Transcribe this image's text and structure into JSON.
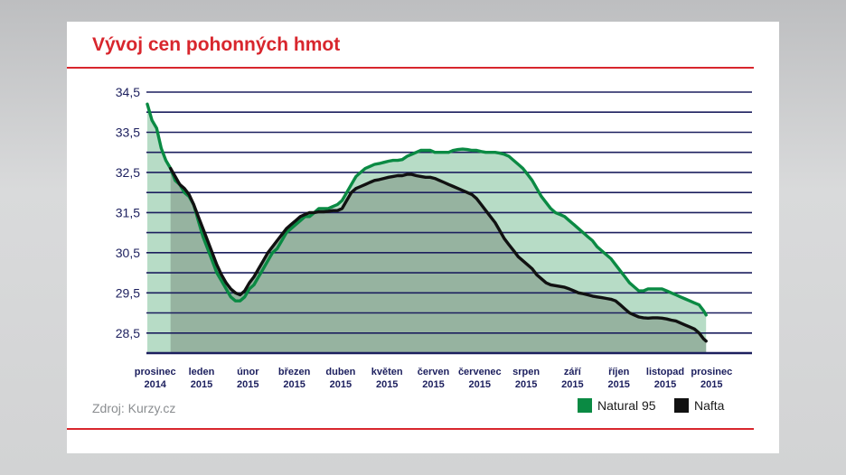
{
  "header": {
    "title": "Vývoj cen pohonných hmot"
  },
  "footer": {
    "source": "Zdroj: Kurzy.cz"
  },
  "colors": {
    "accent": "#d8262d",
    "grid": "#1c1f5e",
    "natural_line": "#0a8a43",
    "natural_fill": "#b7dcc6",
    "nafta_line": "#111111",
    "nafta_fill": "#96b3a0"
  },
  "chart_data": {
    "type": "area",
    "ylim": [
      28.0,
      34.5
    ],
    "yticks": [
      34.5,
      33.5,
      32.5,
      31.5,
      30.5,
      29.5,
      28.5
    ],
    "ytick_labels": [
      "34,5",
      "33,5",
      "32,5",
      "31,5",
      "30,5",
      "29,5",
      "28,5"
    ],
    "months": [
      {
        "m": "prosinec",
        "y": "2014"
      },
      {
        "m": "leden",
        "y": "2015"
      },
      {
        "m": "únor",
        "y": "2015"
      },
      {
        "m": "březen",
        "y": "2015"
      },
      {
        "m": "duben",
        "y": "2015"
      },
      {
        "m": "květen",
        "y": "2015"
      },
      {
        "m": "červen",
        "y": "2015"
      },
      {
        "m": "červenec",
        "y": "2015"
      },
      {
        "m": "srpen",
        "y": "2015"
      },
      {
        "m": "září",
        "y": "2015"
      },
      {
        "m": "říjen",
        "y": "2015"
      },
      {
        "m": "listopad",
        "y": "2015"
      },
      {
        "m": "prosinec",
        "y": "2015"
      }
    ],
    "xlim": [
      0,
      13
    ],
    "series": [
      {
        "name": "Natural 95",
        "points": [
          [
            0.0,
            34.2
          ],
          [
            0.1,
            33.8
          ],
          [
            0.2,
            33.6
          ],
          [
            0.3,
            33.1
          ],
          [
            0.4,
            32.8
          ],
          [
            0.5,
            32.6
          ],
          [
            0.6,
            32.3
          ],
          [
            0.7,
            32.2
          ],
          [
            0.8,
            32.0
          ],
          [
            0.9,
            31.9
          ],
          [
            1.0,
            31.7
          ],
          [
            1.1,
            31.3
          ],
          [
            1.2,
            30.9
          ],
          [
            1.3,
            30.6
          ],
          [
            1.4,
            30.3
          ],
          [
            1.5,
            30.0
          ],
          [
            1.6,
            29.8
          ],
          [
            1.7,
            29.6
          ],
          [
            1.8,
            29.4
          ],
          [
            1.9,
            29.3
          ],
          [
            2.0,
            29.3
          ],
          [
            2.1,
            29.4
          ],
          [
            2.2,
            29.6
          ],
          [
            2.3,
            29.7
          ],
          [
            2.4,
            29.9
          ],
          [
            2.5,
            30.1
          ],
          [
            2.6,
            30.3
          ],
          [
            2.7,
            30.5
          ],
          [
            2.8,
            30.6
          ],
          [
            2.9,
            30.8
          ],
          [
            3.0,
            31.0
          ],
          [
            3.1,
            31.1
          ],
          [
            3.2,
            31.2
          ],
          [
            3.3,
            31.3
          ],
          [
            3.4,
            31.4
          ],
          [
            3.5,
            31.4
          ],
          [
            3.6,
            31.5
          ],
          [
            3.7,
            31.6
          ],
          [
            3.8,
            31.6
          ],
          [
            3.9,
            31.6
          ],
          [
            4.0,
            31.65
          ],
          [
            4.1,
            31.7
          ],
          [
            4.2,
            31.8
          ],
          [
            4.3,
            32.0
          ],
          [
            4.4,
            32.2
          ],
          [
            4.5,
            32.4
          ],
          [
            4.6,
            32.5
          ],
          [
            4.7,
            32.6
          ],
          [
            4.8,
            32.65
          ],
          [
            4.9,
            32.7
          ],
          [
            5.0,
            32.72
          ],
          [
            5.1,
            32.75
          ],
          [
            5.2,
            32.78
          ],
          [
            5.3,
            32.8
          ],
          [
            5.4,
            32.8
          ],
          [
            5.5,
            32.82
          ],
          [
            5.6,
            32.9
          ],
          [
            5.7,
            32.95
          ],
          [
            5.8,
            33.0
          ],
          [
            5.9,
            33.05
          ],
          [
            6.0,
            33.05
          ],
          [
            6.1,
            33.05
          ],
          [
            6.2,
            33.0
          ],
          [
            6.3,
            33.0
          ],
          [
            6.4,
            33.0
          ],
          [
            6.5,
            33.0
          ],
          [
            6.6,
            33.05
          ],
          [
            6.7,
            33.07
          ],
          [
            6.8,
            33.08
          ],
          [
            6.9,
            33.07
          ],
          [
            7.0,
            33.05
          ],
          [
            7.1,
            33.05
          ],
          [
            7.2,
            33.02
          ],
          [
            7.3,
            33.0
          ],
          [
            7.4,
            33.0
          ],
          [
            7.5,
            33.0
          ],
          [
            7.6,
            32.98
          ],
          [
            7.7,
            32.95
          ],
          [
            7.8,
            32.9
          ],
          [
            7.9,
            32.8
          ],
          [
            8.0,
            32.7
          ],
          [
            8.1,
            32.6
          ],
          [
            8.2,
            32.45
          ],
          [
            8.3,
            32.3
          ],
          [
            8.4,
            32.1
          ],
          [
            8.5,
            31.9
          ],
          [
            8.6,
            31.75
          ],
          [
            8.7,
            31.6
          ],
          [
            8.8,
            31.5
          ],
          [
            8.9,
            31.45
          ],
          [
            9.0,
            31.4
          ],
          [
            9.1,
            31.3
          ],
          [
            9.2,
            31.2
          ],
          [
            9.3,
            31.1
          ],
          [
            9.4,
            31.0
          ],
          [
            9.5,
            30.9
          ],
          [
            9.6,
            30.8
          ],
          [
            9.7,
            30.65
          ],
          [
            9.8,
            30.55
          ],
          [
            9.9,
            30.45
          ],
          [
            10.0,
            30.35
          ],
          [
            10.1,
            30.2
          ],
          [
            10.2,
            30.05
          ],
          [
            10.3,
            29.9
          ],
          [
            10.4,
            29.75
          ],
          [
            10.5,
            29.65
          ],
          [
            10.6,
            29.55
          ],
          [
            10.7,
            29.55
          ],
          [
            10.8,
            29.6
          ],
          [
            10.9,
            29.6
          ],
          [
            11.0,
            29.6
          ],
          [
            11.1,
            29.6
          ],
          [
            11.2,
            29.55
          ],
          [
            11.3,
            29.5
          ],
          [
            11.4,
            29.45
          ],
          [
            11.5,
            29.4
          ],
          [
            11.6,
            29.35
          ],
          [
            11.7,
            29.3
          ],
          [
            11.8,
            29.25
          ],
          [
            11.9,
            29.2
          ],
          [
            12.0,
            29.05
          ],
          [
            12.05,
            28.95
          ]
        ]
      },
      {
        "name": "Nafta",
        "points": [
          [
            0.5,
            32.6
          ],
          [
            0.6,
            32.4
          ],
          [
            0.7,
            32.2
          ],
          [
            0.8,
            32.1
          ],
          [
            0.9,
            31.95
          ],
          [
            1.0,
            31.7
          ],
          [
            1.1,
            31.4
          ],
          [
            1.2,
            31.1
          ],
          [
            1.3,
            30.8
          ],
          [
            1.4,
            30.5
          ],
          [
            1.5,
            30.2
          ],
          [
            1.6,
            29.95
          ],
          [
            1.7,
            29.75
          ],
          [
            1.8,
            29.6
          ],
          [
            1.9,
            29.5
          ],
          [
            2.0,
            29.45
          ],
          [
            2.1,
            29.55
          ],
          [
            2.2,
            29.75
          ],
          [
            2.3,
            29.9
          ],
          [
            2.4,
            30.1
          ],
          [
            2.5,
            30.3
          ],
          [
            2.6,
            30.5
          ],
          [
            2.7,
            30.65
          ],
          [
            2.8,
            30.8
          ],
          [
            2.9,
            30.95
          ],
          [
            3.0,
            31.1
          ],
          [
            3.1,
            31.2
          ],
          [
            3.2,
            31.3
          ],
          [
            3.3,
            31.4
          ],
          [
            3.4,
            31.45
          ],
          [
            3.5,
            31.5
          ],
          [
            3.6,
            31.5
          ],
          [
            3.7,
            31.52
          ],
          [
            3.8,
            31.52
          ],
          [
            3.9,
            31.53
          ],
          [
            4.0,
            31.55
          ],
          [
            4.1,
            31.55
          ],
          [
            4.2,
            31.6
          ],
          [
            4.3,
            31.8
          ],
          [
            4.4,
            32.0
          ],
          [
            4.5,
            32.1
          ],
          [
            4.6,
            32.15
          ],
          [
            4.7,
            32.2
          ],
          [
            4.8,
            32.25
          ],
          [
            4.9,
            32.3
          ],
          [
            5.0,
            32.32
          ],
          [
            5.1,
            32.35
          ],
          [
            5.2,
            32.38
          ],
          [
            5.3,
            32.4
          ],
          [
            5.4,
            32.42
          ],
          [
            5.5,
            32.42
          ],
          [
            5.6,
            32.45
          ],
          [
            5.7,
            32.45
          ],
          [
            5.8,
            32.42
          ],
          [
            5.9,
            32.4
          ],
          [
            6.0,
            32.38
          ],
          [
            6.1,
            32.38
          ],
          [
            6.2,
            32.35
          ],
          [
            6.3,
            32.3
          ],
          [
            6.4,
            32.25
          ],
          [
            6.5,
            32.2
          ],
          [
            6.6,
            32.15
          ],
          [
            6.7,
            32.1
          ],
          [
            6.8,
            32.05
          ],
          [
            6.9,
            32.0
          ],
          [
            7.0,
            31.95
          ],
          [
            7.1,
            31.85
          ],
          [
            7.2,
            31.7
          ],
          [
            7.3,
            31.55
          ],
          [
            7.4,
            31.4
          ],
          [
            7.5,
            31.25
          ],
          [
            7.6,
            31.05
          ],
          [
            7.7,
            30.85
          ],
          [
            7.8,
            30.7
          ],
          [
            7.9,
            30.55
          ],
          [
            8.0,
            30.4
          ],
          [
            8.1,
            30.3
          ],
          [
            8.2,
            30.2
          ],
          [
            8.3,
            30.1
          ],
          [
            8.4,
            29.95
          ],
          [
            8.5,
            29.85
          ],
          [
            8.6,
            29.75
          ],
          [
            8.7,
            29.7
          ],
          [
            8.8,
            29.68
          ],
          [
            8.9,
            29.66
          ],
          [
            9.0,
            29.64
          ],
          [
            9.1,
            29.6
          ],
          [
            9.2,
            29.55
          ],
          [
            9.3,
            29.5
          ],
          [
            9.4,
            29.48
          ],
          [
            9.5,
            29.45
          ],
          [
            9.6,
            29.42
          ],
          [
            9.7,
            29.4
          ],
          [
            9.8,
            29.38
          ],
          [
            9.9,
            29.36
          ],
          [
            10.0,
            29.34
          ],
          [
            10.1,
            29.3
          ],
          [
            10.2,
            29.2
          ],
          [
            10.3,
            29.1
          ],
          [
            10.4,
            29.0
          ],
          [
            10.5,
            28.95
          ],
          [
            10.6,
            28.9
          ],
          [
            10.7,
            28.88
          ],
          [
            10.8,
            28.87
          ],
          [
            10.9,
            28.88
          ],
          [
            11.0,
            28.88
          ],
          [
            11.1,
            28.87
          ],
          [
            11.2,
            28.85
          ],
          [
            11.3,
            28.82
          ],
          [
            11.4,
            28.8
          ],
          [
            11.5,
            28.75
          ],
          [
            11.6,
            28.7
          ],
          [
            11.7,
            28.65
          ],
          [
            11.8,
            28.6
          ],
          [
            11.9,
            28.5
          ],
          [
            12.0,
            28.35
          ],
          [
            12.05,
            28.3
          ]
        ]
      }
    ]
  }
}
